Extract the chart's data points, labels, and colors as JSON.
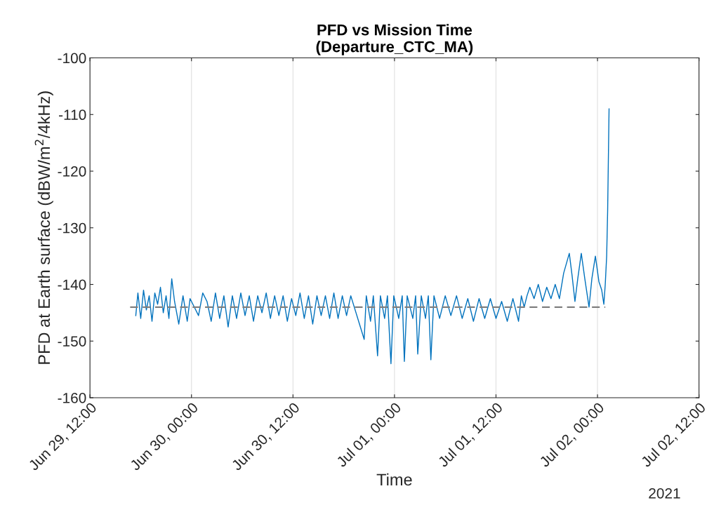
{
  "chart_data": {
    "type": "line",
    "title": "PFD vs Mission Time\n(Departure_CTC_MA)",
    "xlabel": "Time",
    "ylabel": "PFD at Earth surface (dBW/m$^{2}$/4kHz)",
    "annotations": [
      "2021"
    ],
    "xlim": [
      "2021-06-29T12:00",
      "2021-07-02T12:00"
    ],
    "xticks": [
      {
        "value": "2021-06-29T12:00",
        "label": "Jun 29, 12:00"
      },
      {
        "value": "2021-06-30T00:00",
        "label": "Jun 30, 00:00"
      },
      {
        "value": "2021-06-30T12:00",
        "label": "Jun 30, 12:00"
      },
      {
        "value": "2021-07-01T00:00",
        "label": "Jul 01, 00:00"
      },
      {
        "value": "2021-07-01T12:00",
        "label": "Jul 01, 12:00"
      },
      {
        "value": "2021-07-02T00:00",
        "label": "Jul 02, 00:00"
      },
      {
        "value": "2021-07-02T12:00",
        "label": "Jul 02, 12:00"
      }
    ],
    "ylim": [
      -160,
      -100
    ],
    "yticks": [
      -160,
      -150,
      -140,
      -130,
      -120,
      -110,
      -100
    ],
    "grid": "x",
    "series": [
      {
        "color": "#0072bd",
        "line_style": "solid",
        "x": [
          "2021-06-29T17:25",
          "2021-06-29T17:40",
          "2021-06-29T18:00",
          "2021-06-29T18:20",
          "2021-06-29T18:40",
          "2021-06-29T19:00",
          "2021-06-29T19:20",
          "2021-06-29T19:40",
          "2021-06-29T20:00",
          "2021-06-29T20:20",
          "2021-06-29T20:40",
          "2021-06-29T21:00",
          "2021-06-29T21:20",
          "2021-06-29T21:40",
          "2021-06-29T22:00",
          "2021-06-29T22:30",
          "2021-06-29T23:00",
          "2021-06-29T23:30",
          "2021-06-29T23:50",
          "2021-06-30T00:20",
          "2021-06-30T00:50",
          "2021-06-30T01:20",
          "2021-06-30T01:50",
          "2021-06-30T02:20",
          "2021-06-30T02:50",
          "2021-06-30T03:20",
          "2021-06-30T03:50",
          "2021-06-30T04:20",
          "2021-06-30T04:50",
          "2021-06-30T05:20",
          "2021-06-30T05:50",
          "2021-06-30T06:20",
          "2021-06-30T06:50",
          "2021-06-30T07:20",
          "2021-06-30T07:50",
          "2021-06-30T08:20",
          "2021-06-30T08:50",
          "2021-06-30T09:20",
          "2021-06-30T09:50",
          "2021-06-30T10:20",
          "2021-06-30T10:50",
          "2021-06-30T11:20",
          "2021-06-30T11:50",
          "2021-06-30T12:20",
          "2021-06-30T12:50",
          "2021-06-30T13:20",
          "2021-06-30T13:50",
          "2021-06-30T14:20",
          "2021-06-30T14:50",
          "2021-06-30T15:20",
          "2021-06-30T15:50",
          "2021-06-30T16:20",
          "2021-06-30T16:50",
          "2021-06-30T17:20",
          "2021-06-30T17:50",
          "2021-06-30T18:20",
          "2021-06-30T18:50",
          "2021-06-30T20:25",
          "2021-06-30T20:40",
          "2021-06-30T21:10",
          "2021-06-30T21:30",
          "2021-06-30T22:00",
          "2021-06-30T22:20",
          "2021-06-30T22:50",
          "2021-06-30T23:10",
          "2021-06-30T23:35",
          "2021-06-30T23:55",
          "2021-07-01T00:30",
          "2021-07-01T00:55",
          "2021-07-01T01:10",
          "2021-07-01T01:30",
          "2021-07-01T02:10",
          "2021-07-01T02:30",
          "2021-07-01T02:45",
          "2021-07-01T03:10",
          "2021-07-01T03:40",
          "2021-07-01T04:00",
          "2021-07-01T04:18",
          "2021-07-01T04:40",
          "2021-07-01T05:20",
          "2021-07-01T06:00",
          "2021-07-01T06:40",
          "2021-07-01T07:20",
          "2021-07-01T08:00",
          "2021-07-01T08:40",
          "2021-07-01T09:20",
          "2021-07-01T10:00",
          "2021-07-01T10:40",
          "2021-07-01T11:20",
          "2021-07-01T12:00",
          "2021-07-01T12:40",
          "2021-07-01T13:20",
          "2021-07-01T14:00",
          "2021-07-01T14:40",
          "2021-07-01T15:00",
          "2021-07-01T15:20",
          "2021-07-01T15:40",
          "2021-07-01T16:00",
          "2021-07-01T16:30",
          "2021-07-01T17:00",
          "2021-07-01T17:30",
          "2021-07-01T18:00",
          "2021-07-01T18:30",
          "2021-07-01T19:00",
          "2021-07-01T19:30",
          "2021-07-01T20:00",
          "2021-07-01T20:40",
          "2021-07-01T21:00",
          "2021-07-01T21:20",
          "2021-07-01T21:40",
          "2021-07-01T22:05",
          "2021-07-01T22:30",
          "2021-07-01T23:00",
          "2021-07-01T23:20",
          "2021-07-01T23:45",
          "2021-07-02T00:10",
          "2021-07-02T00:30",
          "2021-07-02T00:45",
          "2021-07-02T00:55",
          "2021-07-02T01:05",
          "2021-07-02T01:12",
          "2021-07-02T01:22"
        ],
        "values": [
          -145.5,
          -141.5,
          -146,
          -141,
          -144.5,
          -142,
          -146.5,
          -141.5,
          -143.5,
          -140.5,
          -145,
          -142,
          -146,
          -139,
          -143,
          -147,
          -142,
          -146.5,
          -142.5,
          -144,
          -145.5,
          -141.5,
          -143,
          -146.5,
          -141.5,
          -146,
          -142,
          -147.5,
          -142,
          -146,
          -141.5,
          -145.5,
          -142,
          -146.5,
          -142,
          -145,
          -141.5,
          -146,
          -142,
          -145.5,
          -142,
          -146.5,
          -142.5,
          -145.5,
          -141.5,
          -146,
          -142,
          -147,
          -142,
          -145.5,
          -142,
          -146,
          -141.5,
          -146,
          -142,
          -145.5,
          -142,
          -149.7,
          -142,
          -146.5,
          -142,
          -152.6,
          -142,
          -146,
          -142,
          -154,
          -142,
          -146,
          -142,
          -153.6,
          -142,
          -146,
          -142,
          -152.3,
          -142,
          -146,
          -142,
          -153.3,
          -142,
          -146,
          -142,
          -145.5,
          -142,
          -146,
          -142.5,
          -146.5,
          -142.5,
          -146,
          -142.5,
          -146,
          -143,
          -146.5,
          -142.5,
          -146.5,
          -142,
          -144,
          -142,
          -140.5,
          -142.5,
          -140,
          -143,
          -140.5,
          -142.5,
          -140,
          -142.5,
          -138,
          -134.5,
          -138.5,
          -143,
          -139,
          -134.5,
          -139,
          -144,
          -139,
          -135,
          -139.5,
          -141,
          -143.5,
          -140,
          -135,
          -127,
          -109
        ]
      },
      {
        "color": "#808080",
        "line_style": "dashed",
        "x": [
          "2021-06-29T16:45",
          "2021-07-02T00:55"
        ],
        "values": [
          -144,
          -144
        ]
      }
    ]
  }
}
